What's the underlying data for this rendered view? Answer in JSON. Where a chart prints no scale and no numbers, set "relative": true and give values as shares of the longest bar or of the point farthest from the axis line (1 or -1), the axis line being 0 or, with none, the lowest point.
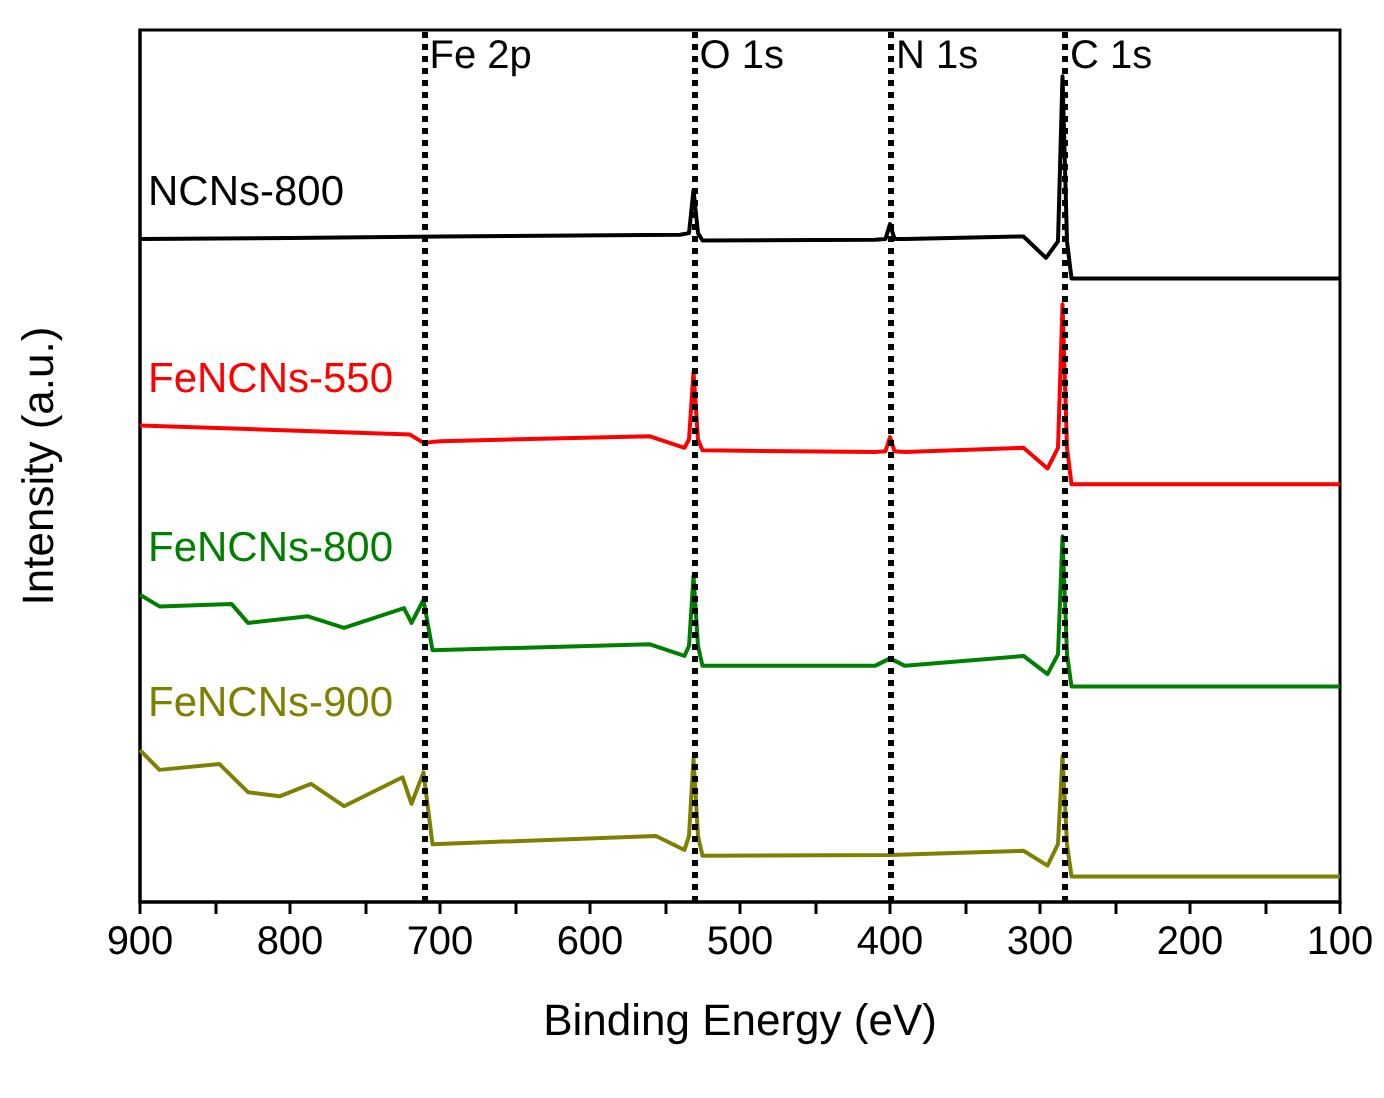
{
  "chart_data": {
    "type": "line",
    "xlabel": "Binding Energy (eV)",
    "ylabel": "Intensity (a.u.)",
    "relative": true,
    "legend": false,
    "marker": "none",
    "grid": false,
    "xlim": [
      900,
      100
    ],
    "xticks": [
      900,
      {
        "value": 850,
        "label": null
      },
      800,
      {
        "value": 750,
        "label": null
      },
      700,
      {
        "value": 650,
        "label": null
      },
      600,
      {
        "value": 550,
        "label": null
      },
      500,
      {
        "value": 450,
        "label": null
      },
      400,
      {
        "value": 350,
        "label": null
      },
      300,
      {
        "value": 250,
        "label": null
      },
      200,
      {
        "value": 150,
        "label": null
      },
      100
    ],
    "ref_lines": [
      {
        "axis": "x",
        "value": 711,
        "label": "Fe 2p",
        "color": "#000000",
        "line_style": "dotted"
      },
      {
        "axis": "x",
        "value": 531,
        "label": "O 1s",
        "color": "#000000",
        "line_style": "dotted"
      },
      {
        "axis": "x",
        "value": 400,
        "label": "N 1s",
        "color": "#000000",
        "line_style": "dotted"
      },
      {
        "axis": "x",
        "value": 284,
        "label": "C 1s",
        "color": "#000000",
        "line_style": "dotted"
      }
    ],
    "series": [
      {
        "name": "NCNs-800",
        "color": "#000000",
        "x": [
          900,
          800,
          700,
          540,
          534,
          531,
          528,
          525,
          410,
          403,
          400,
          397,
          390,
          311,
          296,
          288,
          285,
          282,
          279,
          100
        ],
        "values": [
          0.803,
          0.804,
          0.806,
          0.808,
          0.81,
          0.862,
          0.81,
          0.801,
          0.802,
          0.803,
          0.821,
          0.803,
          0.803,
          0.806,
          0.78,
          0.8,
          1.0,
          0.8,
          0.755,
          0.755
        ]
      },
      {
        "name": "FeNCNs-550",
        "color": "#ff0000",
        "x": [
          900,
          800,
          720,
          711,
          700,
          560,
          537,
          534,
          531,
          528,
          525,
          410,
          403,
          400,
          397,
          390,
          311,
          295,
          288,
          285,
          282,
          279,
          100
        ],
        "values": [
          0.577,
          0.571,
          0.566,
          0.556,
          0.558,
          0.564,
          0.55,
          0.56,
          0.642,
          0.56,
          0.547,
          0.545,
          0.546,
          0.563,
          0.546,
          0.545,
          0.55,
          0.525,
          0.55,
          0.724,
          0.55,
          0.506,
          0.506
        ]
      },
      {
        "name": "FeNCNs-800",
        "color": "#008000",
        "x": [
          900,
          887,
          839,
          828,
          788,
          764,
          724,
          719,
          711,
          705,
          560,
          537,
          534,
          531,
          528,
          525,
          410,
          400,
          390,
          311,
          295,
          288,
          285,
          282,
          279,
          100
        ],
        "values": [
          0.372,
          0.358,
          0.361,
          0.338,
          0.346,
          0.332,
          0.356,
          0.338,
          0.366,
          0.305,
          0.312,
          0.298,
          0.31,
          0.395,
          0.31,
          0.286,
          0.286,
          0.295,
          0.286,
          0.298,
          0.276,
          0.3,
          0.443,
          0.3,
          0.261,
          0.261
        ]
      },
      {
        "name": "FeNCNs-900",
        "color": "#808000",
        "x": [
          900,
          887,
          847,
          828,
          807,
          786,
          764,
          725,
          719,
          711,
          705,
          556,
          537,
          534,
          531,
          528,
          525,
          400,
          311,
          295,
          288,
          285,
          282,
          279,
          100
        ],
        "values": [
          0.184,
          0.16,
          0.167,
          0.133,
          0.128,
          0.143,
          0.116,
          0.151,
          0.119,
          0.157,
          0.07,
          0.08,
          0.063,
          0.08,
          0.174,
          0.08,
          0.056,
          0.057,
          0.062,
          0.044,
          0.07,
          0.177,
          0.07,
          0.031,
          0.031
        ]
      }
    ]
  }
}
